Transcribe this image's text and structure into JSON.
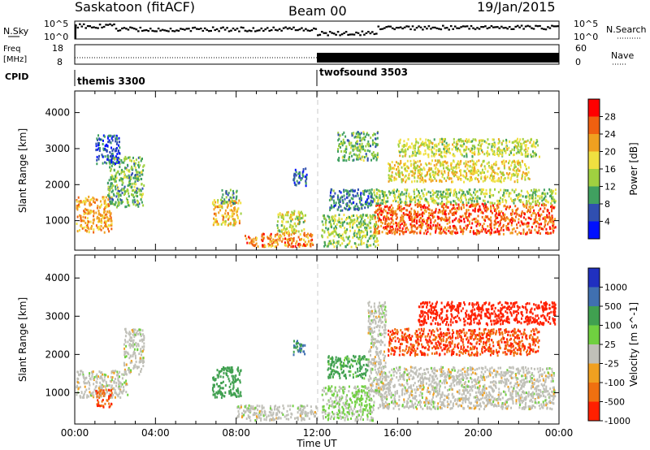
{
  "header": {
    "station": "Saskatoon (fitACF)",
    "beam": "Beam 00",
    "date": "19/Jan/2015"
  },
  "strips": {
    "nsky_label": "N.Sky",
    "nsearch_label": "N.Search",
    "noise_ticks": [
      "10^5",
      "10^0"
    ],
    "freq_label": "Freq",
    "freq_unit": "[MHz]",
    "freq_ticks": [
      "18",
      "8"
    ],
    "nave_label": "Nave",
    "nave_ticks": [
      "60",
      "0"
    ],
    "cpid_label": "CPID",
    "cpid_segments": [
      {
        "name": "themis 3300",
        "start_hour": 0
      },
      {
        "name": "twofsound 3503",
        "start_hour": 12
      }
    ]
  },
  "colorbars": {
    "power": {
      "label": "Power [dB]",
      "ticks": [
        "28",
        "24",
        "20",
        "16",
        "12",
        "8",
        "4"
      ],
      "colors": [
        "#ff0000",
        "#f06010",
        "#f0a020",
        "#f0e040",
        "#a0d040",
        "#40a060",
        "#304fb0",
        "#0010ff"
      ]
    },
    "velocity": {
      "label": "Velocity [m s^-1]",
      "ticks": [
        "1000",
        "500",
        "100",
        "25",
        "-25",
        "-100",
        "-500",
        "-1000"
      ],
      "colors": [
        "#2030c0",
        "#4070b0",
        "#40a050",
        "#70d040",
        "#c0c0b8",
        "#f0a020",
        "#f07010",
        "#ff2000"
      ]
    }
  },
  "chart_data": {
    "type": "heatmap",
    "x_axis_label": "Time UT",
    "x_tick_labels": [
      "00:00",
      "04:00",
      "08:00",
      "12:00",
      "16:00",
      "20:00",
      "00:00"
    ],
    "y_axis_label": "Slant Range [km]",
    "y_tick_labels": [
      "1000",
      "2000",
      "3000",
      "4000"
    ],
    "xlim_hours": [
      0,
      24
    ],
    "ylim_km": [
      180,
      4600
    ],
    "cpid_switch_hour": 12,
    "power_regions": [
      {
        "t0": 0.05,
        "t1": 1.8,
        "r0": 700,
        "r1": 1700,
        "value": 22
      },
      {
        "t0": 1.6,
        "t1": 3.4,
        "r0": 1400,
        "r1": 2800,
        "value": 12
      },
      {
        "t0": 1.0,
        "t1": 2.2,
        "r0": 2600,
        "r1": 3400,
        "value": 6
      },
      {
        "t0": 6.8,
        "t1": 8.2,
        "r0": 900,
        "r1": 1600,
        "value": 20
      },
      {
        "t0": 7.2,
        "t1": 8.0,
        "r0": 1500,
        "r1": 1900,
        "value": 10
      },
      {
        "t0": 8.4,
        "t1": 11.8,
        "r0": 300,
        "r1": 700,
        "value": 24
      },
      {
        "t0": 10.0,
        "t1": 11.4,
        "r0": 700,
        "r1": 1300,
        "value": 16
      },
      {
        "t0": 10.8,
        "t1": 11.5,
        "r0": 2000,
        "r1": 2500,
        "value": 6
      },
      {
        "t0": 12.2,
        "t1": 15.0,
        "r0": 300,
        "r1": 1200,
        "value": 14
      },
      {
        "t0": 12.6,
        "t1": 14.8,
        "r0": 1300,
        "r1": 1900,
        "value": 8
      },
      {
        "t0": 14.8,
        "t1": 23.8,
        "r0": 650,
        "r1": 1500,
        "value": 26
      },
      {
        "t0": 14.8,
        "t1": 23.8,
        "r0": 1500,
        "r1": 1900,
        "value": 14
      },
      {
        "t0": 15.5,
        "t1": 22.5,
        "r0": 2100,
        "r1": 2700,
        "value": 18
      },
      {
        "t0": 16.0,
        "t1": 23.0,
        "r0": 2800,
        "r1": 3300,
        "value": 16
      },
      {
        "t0": 13.0,
        "t1": 15.0,
        "r0": 2700,
        "r1": 3500,
        "value": 12
      }
    ],
    "velocity_regions": [
      {
        "t0": 0.05,
        "t1": 2.6,
        "r0": 900,
        "r1": 1600,
        "value": 0
      },
      {
        "t0": 1.0,
        "t1": 1.8,
        "r0": 650,
        "r1": 1100,
        "value": -300
      },
      {
        "t0": 2.4,
        "t1": 3.4,
        "r0": 1500,
        "r1": 2700,
        "value": 0
      },
      {
        "t0": 6.8,
        "t1": 8.2,
        "r0": 900,
        "r1": 1700,
        "value": 150
      },
      {
        "t0": 8.0,
        "t1": 12.0,
        "r0": 300,
        "r1": 700,
        "value": 0
      },
      {
        "t0": 10.8,
        "t1": 11.4,
        "r0": 2000,
        "r1": 2400,
        "value": 300
      },
      {
        "t0": 12.2,
        "t1": 14.8,
        "r0": 300,
        "r1": 1200,
        "value": 30
      },
      {
        "t0": 14.5,
        "t1": 15.4,
        "r0": 1000,
        "r1": 3400,
        "value": 0
      },
      {
        "t0": 15.0,
        "t1": 23.8,
        "r0": 600,
        "r1": 1700,
        "value": 0
      },
      {
        "t0": 15.5,
        "t1": 23.0,
        "r0": 2000,
        "r1": 2700,
        "value": -300
      },
      {
        "t0": 17.0,
        "t1": 23.8,
        "r0": 2800,
        "r1": 3400,
        "value": -400
      },
      {
        "t0": 12.5,
        "t1": 14.5,
        "r0": 1400,
        "r1": 2000,
        "value": 80
      }
    ]
  }
}
